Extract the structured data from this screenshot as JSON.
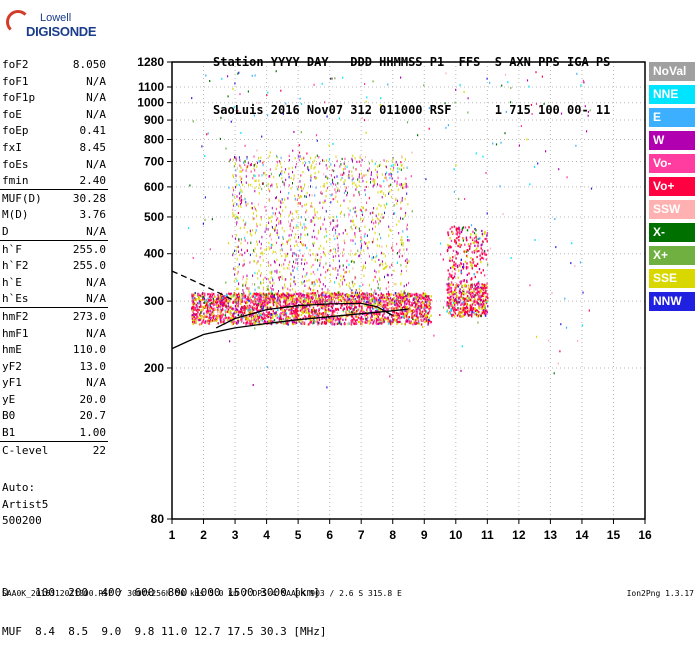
{
  "logo": {
    "line1": "Lowell",
    "line2": "DIGISONDE"
  },
  "header": {
    "line1": "Station YYYY DAY   DDD HHMMSS P1  FFS  S AXN PPS IGA PS",
    "line2": "SaoLuis 2016 Nov07 312 011000 RSF      1 715 100 00- 11"
  },
  "params": {
    "group1": [
      {
        "label": "foF2",
        "value": "8.050"
      },
      {
        "label": "foF1",
        "value": "N/A"
      },
      {
        "label": "foF1p",
        "value": "N/A"
      },
      {
        "label": "foE",
        "value": "N/A"
      },
      {
        "label": "foEp",
        "value": "0.41"
      },
      {
        "label": "fxI",
        "value": "8.45"
      },
      {
        "label": "foEs",
        "value": "N/A"
      },
      {
        "label": "fmin",
        "value": "2.40"
      }
    ],
    "group2": [
      {
        "label": "MUF(D)",
        "value": "30.28"
      },
      {
        "label": "M(D)",
        "value": "3.76"
      },
      {
        "label": "D",
        "value": "N/A"
      }
    ],
    "group3": [
      {
        "label": "h`F",
        "value": "255.0"
      },
      {
        "label": "h`F2",
        "value": "255.0"
      },
      {
        "label": "h`E",
        "value": "N/A"
      },
      {
        "label": "h`Es",
        "value": "N/A"
      }
    ],
    "group4": [
      {
        "label": "hmF2",
        "value": "273.0"
      },
      {
        "label": "hmF1",
        "value": "N/A"
      },
      {
        "label": "hmE",
        "value": "110.0"
      },
      {
        "label": "yF2",
        "value": "13.0"
      },
      {
        "label": "yF1",
        "value": "N/A"
      },
      {
        "label": "yE",
        "value": "20.0"
      },
      {
        "label": "B0",
        "value": "20.7"
      },
      {
        "label": "B1",
        "value": "1.00"
      }
    ],
    "group5": [
      {
        "label": "C-level",
        "value": "22"
      }
    ]
  },
  "auto": {
    "line1": "Auto:",
    "line2": "Artist5",
    "line3": "500200"
  },
  "bottom_table": {
    "line1": "D    100  200  400  600  800 1000 1500 3000 [km]",
    "line2": "MUF  8.4  8.5  9.0  9.8 11.0 12.7 17.5 30.3 [MHz]"
  },
  "footer": {
    "text": "SAA0K_2016312011000.RSF / 300fx256h 50 kHs 5.0 km / DPS-4 SAA0K 903 / 2.6 S 315.8 E",
    "version": "Ion2Png 1.3.17"
  },
  "legend": [
    {
      "label": "NoVal",
      "color": "#a0a0a0"
    },
    {
      "label": "NNE",
      "color": "#00e5ff"
    },
    {
      "label": "E",
      "color": "#3cb0ff"
    },
    {
      "label": "W",
      "color": "#b000b0"
    },
    {
      "label": "Vo-",
      "color": "#ff3ca0"
    },
    {
      "label": "Vo+",
      "color": "#ff0040"
    },
    {
      "label": "SSW",
      "color": "#ffb0b0"
    },
    {
      "label": "X-",
      "color": "#007000"
    },
    {
      "label": "X+",
      "color": "#70b040"
    },
    {
      "label": "SSE",
      "color": "#d8d800"
    },
    {
      "label": "NNW",
      "color": "#2020e0"
    }
  ],
  "chart_data": {
    "type": "scatter",
    "title": "",
    "xlabel": "",
    "ylabel": "",
    "xlim": [
      1,
      16
    ],
    "ylim": [
      80,
      1280
    ],
    "y_scale": "log",
    "x_ticks": [
      1,
      2,
      3,
      4,
      5,
      6,
      7,
      8,
      9,
      10,
      11,
      12,
      13,
      14,
      15,
      16
    ],
    "y_ticks": [
      80,
      200,
      300,
      400,
      500,
      600,
      700,
      800,
      900,
      1000,
      1100,
      1280
    ],
    "grid": "dotted",
    "trace_lines": [
      {
        "name": "",
        "style": "dashed",
        "x": [
          1.0,
          1.5,
          2.0,
          2.5,
          3.0
        ],
        "y": [
          360,
          345,
          330,
          315,
          300
        ]
      },
      {
        "name": "",
        "style": "solid",
        "x": [
          1.0,
          1.5,
          2.0,
          3.0,
          4.0,
          5.0,
          6.0,
          7.0,
          8.0,
          8.5
        ],
        "y": [
          225,
          235,
          245,
          255,
          262,
          268,
          273,
          278,
          283,
          286
        ]
      },
      {
        "name": "",
        "style": "solid",
        "x": [
          2.4,
          3.0,
          4.0,
          5.0,
          6.0,
          7.0,
          7.5,
          8.0
        ],
        "y": [
          255,
          270,
          285,
          292,
          295,
          296,
          290,
          275
        ]
      }
    ]
  }
}
